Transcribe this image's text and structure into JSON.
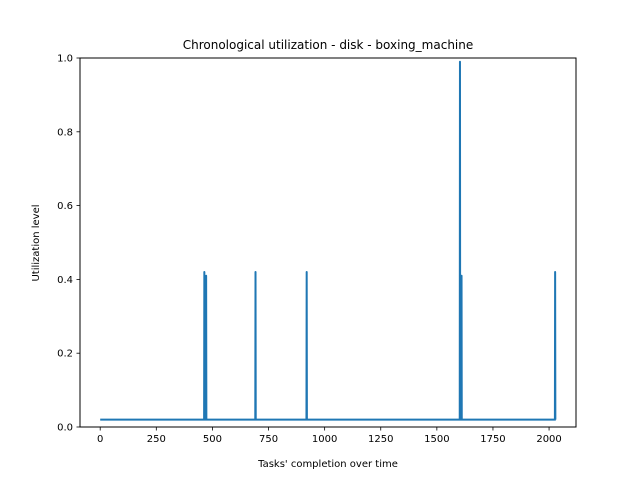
{
  "chart_data": {
    "type": "line",
    "title": "Chronological utilization - disk - boxing_machine",
    "xlabel": "Tasks' completion over time",
    "ylabel": "Utilization level",
    "xlim": [
      -90,
      2120
    ],
    "ylim": [
      0,
      1.0
    ],
    "xticks": [
      0,
      250,
      500,
      750,
      1000,
      1250,
      1500,
      1750,
      2000
    ],
    "yticks": [
      0.0,
      0.2,
      0.4,
      0.6,
      0.8,
      1.0
    ],
    "ytick_labels": [
      "0.0",
      "0.2",
      "0.4",
      "0.6",
      "0.8",
      "1.0"
    ],
    "grid": false,
    "series": [
      {
        "color": "#1f77b4",
        "baseline": 0.02,
        "x_range": [
          0,
          2030
        ],
        "spikes": [
          {
            "x": 464,
            "y": 0.42
          },
          {
            "x": 472,
            "y": 0.41
          },
          {
            "x": 692,
            "y": 0.42
          },
          {
            "x": 920,
            "y": 0.42
          },
          {
            "x": 1603,
            "y": 0.99
          },
          {
            "x": 1610,
            "y": 0.41
          },
          {
            "x": 2027,
            "y": 0.42
          }
        ]
      }
    ]
  }
}
